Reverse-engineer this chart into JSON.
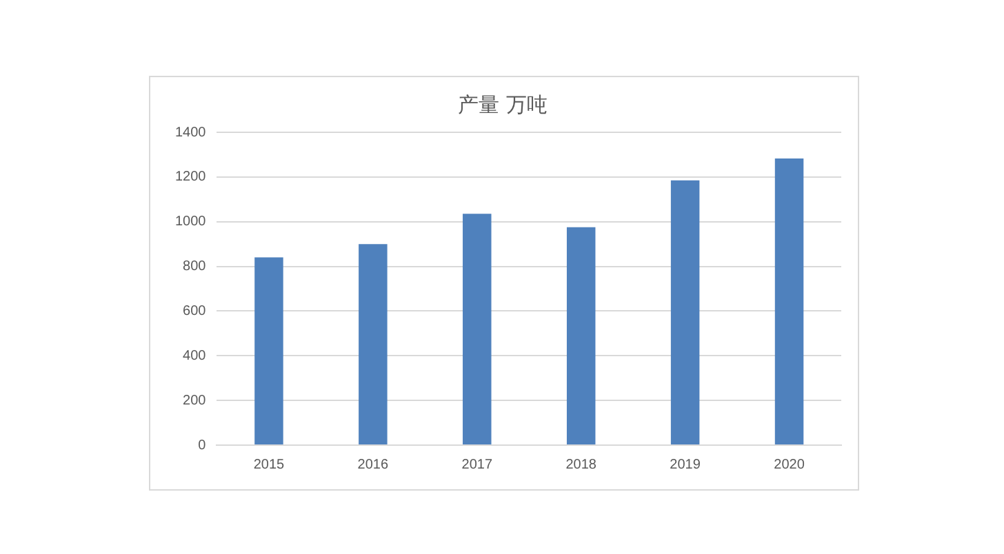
{
  "chart_data": {
    "type": "bar",
    "title": "产量 万吨",
    "categories": [
      "2015",
      "2016",
      "2017",
      "2018",
      "2019",
      "2020"
    ],
    "values": [
      840,
      900,
      1035,
      975,
      1185,
      1283
    ],
    "color": "#4f81bd",
    "ylim": [
      0,
      1400
    ],
    "yticks": [
      0,
      200,
      400,
      600,
      800,
      1000,
      1200,
      1400
    ],
    "grid": "y",
    "legend": false
  }
}
